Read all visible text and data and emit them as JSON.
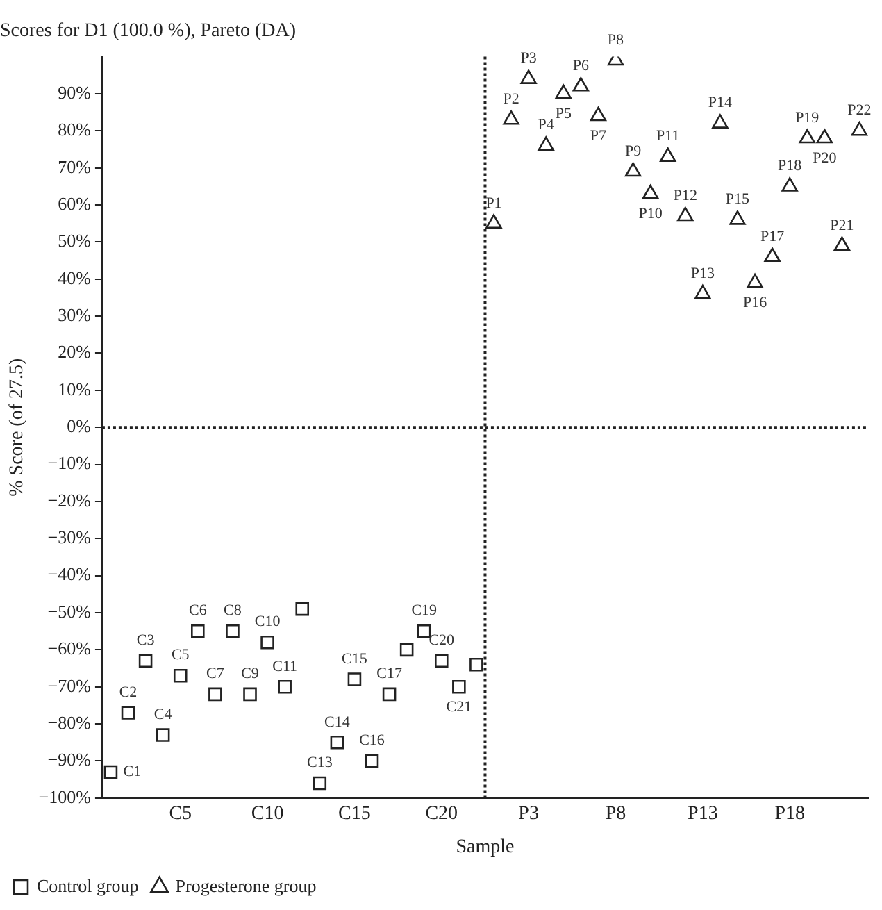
{
  "chart_data": {
    "type": "scatter",
    "title": "Scores for D1 (100.0 %), Pareto (DA)",
    "xlabel": "Sample",
    "ylabel": "% Score (of 27.5)",
    "categories": [
      null,
      null,
      null,
      null,
      "C5",
      null,
      null,
      null,
      null,
      "C10",
      null,
      null,
      null,
      null,
      "C15",
      null,
      null,
      null,
      null,
      "C20",
      null,
      null,
      null,
      null,
      "P3",
      null,
      null,
      null,
      null,
      "P8",
      null,
      null,
      null,
      null,
      "P13",
      null,
      null,
      null,
      null,
      "P18",
      null,
      null,
      null,
      null
    ],
    "series": [
      {
        "name": "Control group",
        "color": "#222222",
        "marker": "square",
        "values": [
          -93,
          -77,
          -63,
          -83,
          -67,
          -55,
          -72,
          -55,
          -72,
          -58,
          -70,
          -49,
          -96,
          -85,
          -68,
          -90,
          -72,
          -60,
          -55,
          -63,
          -70,
          -64,
          null,
          null,
          null,
          null,
          null,
          null,
          null,
          null,
          null,
          null,
          null,
          null,
          null,
          null,
          null,
          null,
          null,
          null,
          null,
          null,
          null,
          null
        ],
        "value_labels": [
          "C1",
          "C2",
          "C3",
          "C4",
          "C5",
          "C6",
          "C7",
          "C8",
          "C9",
          "C10",
          "C11",
          null,
          "C13",
          "C14",
          "C15",
          "C16",
          "C17",
          null,
          "C19",
          "C20",
          "C21",
          null,
          null,
          null,
          null,
          null,
          null,
          null,
          null,
          null,
          null,
          null,
          null,
          null,
          null,
          null,
          null,
          null,
          null,
          null,
          null,
          null,
          null,
          null
        ]
      },
      {
        "name": "Progesterone group",
        "color": "#222222",
        "marker": "triangle",
        "values": [
          null,
          null,
          null,
          null,
          null,
          null,
          null,
          null,
          null,
          null,
          null,
          null,
          null,
          null,
          null,
          null,
          null,
          null,
          null,
          null,
          null,
          null,
          55,
          83,
          94,
          76,
          90,
          92,
          84,
          99,
          69,
          63,
          73,
          57,
          36,
          82,
          56,
          39,
          46,
          65,
          78,
          78,
          49,
          80
        ],
        "value_labels": [
          null,
          null,
          null,
          null,
          null,
          null,
          null,
          null,
          null,
          null,
          null,
          null,
          null,
          null,
          null,
          null,
          null,
          null,
          null,
          null,
          null,
          null,
          "P1",
          "P2",
          "P3",
          "P4",
          "P5",
          "P6",
          "P7",
          "P8",
          "P9",
          "P10",
          "P11",
          "P12",
          "P13",
          "P14",
          "P15",
          "P16",
          "P17",
          "P18",
          "P19",
          "P20",
          "P21",
          "P22"
        ]
      }
    ],
    "ylim": [
      -100,
      100
    ],
    "yticks": [
      {
        "value": -100,
        "label": "−100%"
      },
      {
        "value": -90,
        "label": "−90%"
      },
      {
        "value": -80,
        "label": "−80%"
      },
      {
        "value": -70,
        "label": "−70%"
      },
      {
        "value": -60,
        "label": "−60%"
      },
      {
        "value": -50,
        "label": "−50%"
      },
      {
        "value": -40,
        "label": "−40%"
      },
      {
        "value": -30,
        "label": "−30%"
      },
      {
        "value": -20,
        "label": "−20%"
      },
      {
        "value": -10,
        "label": "−10%"
      },
      {
        "value": 0,
        "label": "0%"
      },
      {
        "value": 10,
        "label": "10%"
      },
      {
        "value": 20,
        "label": "20%"
      },
      {
        "value": 30,
        "label": "30%"
      },
      {
        "value": 40,
        "label": "40%"
      },
      {
        "value": 50,
        "label": "50%"
      },
      {
        "value": 60,
        "label": "60%"
      },
      {
        "value": 70,
        "label": "70%"
      },
      {
        "value": 80,
        "label": "80%"
      },
      {
        "value": 90,
        "label": "90%"
      }
    ],
    "ref_lines": [
      {
        "axis": "y",
        "value": 0,
        "line_style": "dotted",
        "color": "#222222"
      }
    ],
    "grid": false,
    "legend": "bottom"
  }
}
